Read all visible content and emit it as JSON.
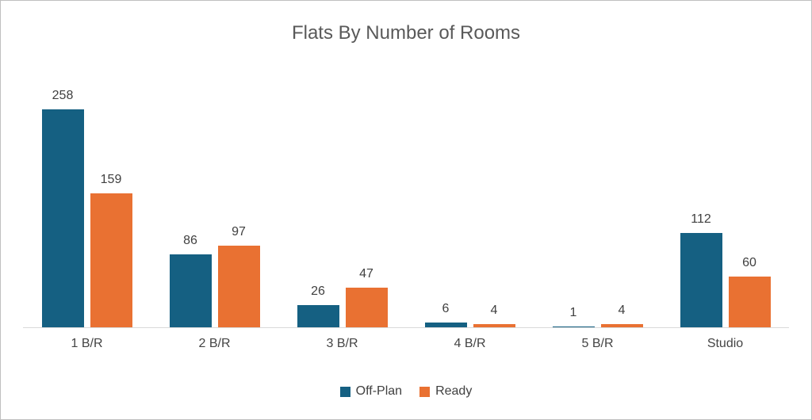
{
  "window": {
    "background": "#ffffff",
    "border_color": "#bfbfbf"
  },
  "chart_data": {
    "type": "bar",
    "title": "Flats By Number of Rooms",
    "categories": [
      "1 B/R",
      "2 B/R",
      "3 B/R",
      "4 B/R",
      "5 B/R",
      "Studio"
    ],
    "series": [
      {
        "name": "Off-Plan",
        "color": "#156082",
        "values": [
          258,
          86,
          26,
          6,
          1,
          112
        ]
      },
      {
        "name": "Ready",
        "color": "#E97132",
        "values": [
          159,
          97,
          47,
          4,
          4,
          60
        ]
      }
    ],
    "xlabel": "",
    "ylabel": "",
    "ylim": [
      0,
      280
    ],
    "grid": false,
    "value_labels": true,
    "legend_position": "bottom",
    "title_color": "#595959",
    "label_color": "#404040",
    "axis_line_color": "#d9d9d9"
  }
}
